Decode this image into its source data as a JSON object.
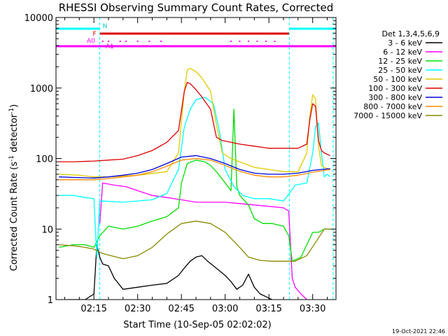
{
  "chart_data": {
    "type": "line",
    "title": "RHESSI Observing Summary Count Rates, Corrected",
    "xlabel": "Start Time (10-Sep-05 02:02:02)",
    "ylabel": "Corrected Count Rate (s⁻¹ detector⁻¹)",
    "ylabel_parts": {
      "a": "Corrected Count Rate (s",
      "b": "-1",
      "c": " detector",
      "d": "-1",
      "e": ")"
    },
    "yscale": "log",
    "ylim": [
      1,
      10000
    ],
    "xlim_minutes": [
      2.0,
      98.0
    ],
    "x_tick_labels": [
      {
        "label": "02:15",
        "min": 15
      },
      {
        "label": "02:30",
        "min": 30
      },
      {
        "label": "02:45",
        "min": 45
      },
      {
        "label": "03:00",
        "min": 60
      },
      {
        "label": "03:15",
        "min": 75
      },
      {
        "label": "03:30",
        "min": 90
      }
    ],
    "y_tick_labels": [
      {
        "label": "1",
        "value": 1
      },
      {
        "label": "10",
        "value": 10
      },
      {
        "label": "100",
        "value": 100
      },
      {
        "label": "1000",
        "value": 1000
      },
      {
        "label": "10000",
        "value": 10000
      }
    ],
    "legend_title": "Det 1,3,4,5,6,9",
    "legend_position": "right",
    "timestamp": "19-Oct-2021 22:46",
    "night_intervals": [
      [
        0.0,
        17.0
      ],
      [
        82.0,
        98.0
      ]
    ],
    "night_label": "N",
    "flare_interval": [
      17.0,
      82.0
    ],
    "flare_label": "F",
    "atten_label": "A0",
    "atten_label2": "A1",
    "atten_dots_min": [
      18,
      20,
      24,
      26,
      30,
      34,
      38,
      62,
      65,
      68,
      71,
      74,
      77
    ],
    "dashed_lines_min": [
      17.0,
      82.0,
      97.0
    ],
    "series": [
      {
        "name": "3 - 6 keV",
        "color": "#000000",
        "x": [
          6,
          12,
          15,
          16,
          17,
          18,
          20,
          22,
          25,
          30,
          35,
          40,
          44,
          46,
          48,
          50,
          52,
          54,
          56,
          60,
          62,
          64,
          66,
          68,
          70,
          72,
          74,
          76
        ],
        "y": [
          1.0,
          1.0,
          1.2,
          6.0,
          4.0,
          3.2,
          3.0,
          2.0,
          1.4,
          1.5,
          1.6,
          1.7,
          2.2,
          2.8,
          3.5,
          4.0,
          4.2,
          3.5,
          3.0,
          2.2,
          1.8,
          1.4,
          1.6,
          2.3,
          1.5,
          1.2,
          1.1,
          1.0
        ]
      },
      {
        "name": "6 - 12 keV",
        "color": "#ff00ff",
        "x": [
          17,
          18,
          22,
          26,
          30,
          35,
          40,
          45,
          50,
          55,
          60,
          65,
          70,
          75,
          80,
          81.8,
          83,
          84,
          86,
          88
        ],
        "y": [
          12,
          45,
          42,
          40,
          35,
          30,
          28,
          26,
          24,
          24,
          24,
          23,
          22,
          21,
          20,
          18,
          2.0,
          1.5,
          1.2,
          1.0
        ]
      },
      {
        "name": "12 - 25 keV",
        "color": "#00dd00",
        "x": [
          3,
          8,
          12,
          15,
          17,
          20,
          25,
          30,
          35,
          40,
          44,
          45,
          47,
          50,
          53,
          55,
          57,
          60,
          62,
          63,
          64,
          65,
          68,
          70,
          73,
          76,
          80,
          81.8,
          83,
          86,
          88,
          90,
          92,
          94,
          96
        ],
        "y": [
          5.5,
          6,
          6,
          5.5,
          8,
          11,
          10,
          11,
          13,
          15,
          20,
          45,
          85,
          95,
          90,
          80,
          65,
          45,
          35,
          500,
          40,
          30,
          22,
          14,
          12,
          12,
          11,
          8,
          3.5,
          4,
          6,
          9,
          9,
          10,
          10
        ]
      },
      {
        "name": "25 - 50 keV",
        "color": "#00ffff",
        "x": [
          3,
          8,
          12,
          15,
          16,
          17,
          18,
          25,
          35,
          40,
          44,
          46,
          48,
          50,
          53,
          56,
          58,
          60,
          63,
          66,
          70,
          75,
          80,
          82,
          84,
          88,
          90,
          91,
          92,
          93,
          94,
          95,
          96
        ],
        "y": [
          30,
          30,
          28,
          27,
          4,
          25,
          25,
          24,
          26,
          32,
          70,
          280,
          500,
          680,
          740,
          600,
          250,
          70,
          40,
          30,
          27,
          27,
          25,
          32,
          42,
          45,
          120,
          280,
          320,
          120,
          55,
          60,
          55
        ]
      },
      {
        "name": "50 - 100 keV",
        "color": "#ddcc00",
        "x": [
          3,
          10,
          15,
          17,
          20,
          30,
          40,
          44,
          46,
          47,
          48,
          50,
          52,
          55,
          57,
          59,
          62,
          65,
          70,
          75,
          80,
          85,
          88,
          89,
          90,
          91,
          92,
          93,
          94,
          96
        ],
        "y": [
          60,
          58,
          55,
          55,
          55,
          58,
          65,
          120,
          900,
          1800,
          1900,
          1700,
          1400,
          900,
          300,
          120,
          100,
          90,
          75,
          70,
          65,
          65,
          120,
          400,
          800,
          700,
          150,
          80,
          75,
          70
        ]
      },
      {
        "name": "100 - 300 keV",
        "color": "#dd0000",
        "x": [
          3,
          8,
          15,
          20,
          25,
          30,
          35,
          40,
          44,
          46,
          47,
          48,
          50,
          52,
          55,
          57,
          59,
          62,
          65,
          70,
          75,
          80,
          85,
          88,
          89,
          90,
          91,
          92,
          93,
          94,
          96
        ],
        "y": [
          90,
          90,
          92,
          95,
          98,
          110,
          130,
          170,
          250,
          900,
          1200,
          1150,
          950,
          750,
          500,
          200,
          180,
          170,
          160,
          150,
          140,
          140,
          140,
          160,
          350,
          600,
          550,
          180,
          130,
          120,
          110
        ]
      },
      {
        "name": "300 - 800 keV",
        "color": "#0000dd",
        "x": [
          3,
          8,
          15,
          20,
          25,
          30,
          35,
          40,
          45,
          50,
          55,
          60,
          65,
          70,
          75,
          80,
          85,
          90,
          96
        ],
        "y": [
          55,
          54,
          53,
          55,
          58,
          62,
          70,
          85,
          105,
          110,
          100,
          85,
          70,
          62,
          60,
          60,
          62,
          68,
          72
        ]
      },
      {
        "name": "800 - 7000 keV",
        "color": "#ff8800",
        "x": [
          3,
          8,
          15,
          20,
          25,
          30,
          35,
          40,
          45,
          50,
          55,
          60,
          65,
          70,
          75,
          80,
          85,
          90,
          96
        ],
        "y": [
          50,
          50,
          50,
          52,
          55,
          58,
          65,
          78,
          95,
          100,
          95,
          80,
          66,
          58,
          55,
          55,
          58,
          64,
          70
        ]
      },
      {
        "name": "7000 - 15000 keV",
        "color": "#888800",
        "x": [
          3,
          8,
          12,
          15,
          18,
          25,
          30,
          35,
          40,
          45,
          50,
          55,
          60,
          65,
          68,
          72,
          76,
          80,
          84,
          88,
          92,
          94,
          96
        ],
        "y": [
          6,
          5.8,
          5.5,
          5.2,
          4.5,
          3.8,
          4.2,
          5.5,
          8.5,
          12,
          13,
          12,
          9,
          5.5,
          4,
          3.6,
          3.5,
          3.5,
          3.5,
          4.2,
          7.5,
          10,
          10
        ]
      }
    ]
  }
}
